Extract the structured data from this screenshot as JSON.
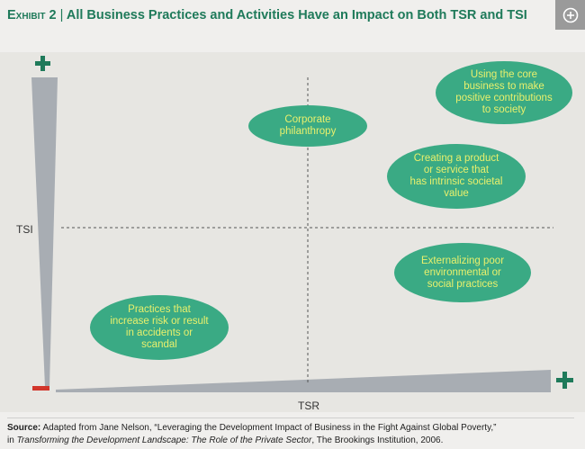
{
  "header": {
    "exhibit_label": "Exhibit 2",
    "separator": "|",
    "title": "All Business Practices and Activities Have an Impact on Both TSR and TSI",
    "expand_icon": "plus-circle-icon"
  },
  "axes": {
    "y_label": "TSI",
    "x_label": "TSR",
    "plus_symbol": "+",
    "minus_symbol": "–"
  },
  "bubbles": [
    {
      "id": "core-business",
      "lines": [
        "Using the core",
        "business to make",
        "positive contributions",
        "to society"
      ]
    },
    {
      "id": "corporate-philanthropy",
      "lines": [
        "Corporate",
        "philanthropy"
      ]
    },
    {
      "id": "product-service",
      "lines": [
        "Creating a product",
        "or service that",
        "has intrinsic societal",
        "value"
      ]
    },
    {
      "id": "externalizing",
      "lines": [
        "Externalizing poor",
        "environmental or",
        "social practices"
      ]
    },
    {
      "id": "risk-practices",
      "lines": [
        "Practices that",
        "increase risk or result",
        "in accidents or",
        "scandal"
      ]
    }
  ],
  "source": {
    "label": "Source:",
    "text_1": " Adapted from Jane Nelson, “Leveraging the Development Impact of Business in the Fight Against Global Poverty,”",
    "text_2_prefix": "in ",
    "text_2_italic": "Transforming the Development Landscape: The Role of the Private Sector",
    "text_2_suffix": ", The Brookings Institution, 2006."
  },
  "colors": {
    "title_green": "#1f7a5a",
    "bubble_fill": "#3aaa84",
    "bubble_text": "#e9f06c",
    "plus_green": "#1f7a5a",
    "minus_red": "#d2362b",
    "wedge_grey": "#a8adb3"
  }
}
